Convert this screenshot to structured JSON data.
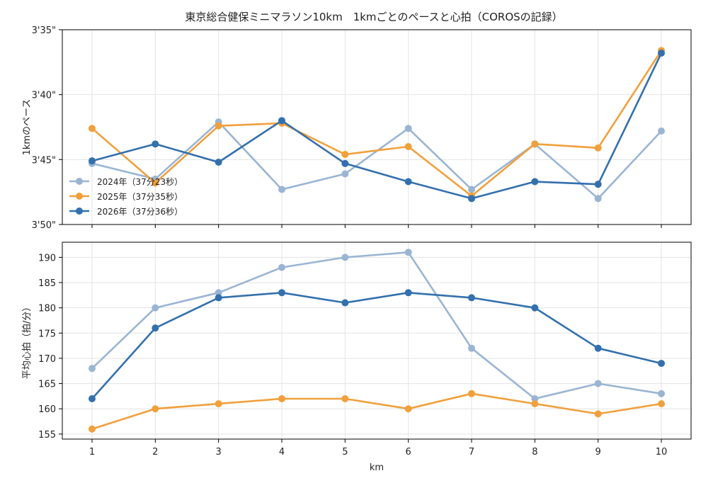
{
  "title": "東京総合健保ミニマラソン10km　1kmごとのペースと心拍（COROSの記録）",
  "colors": {
    "2024": "#9ab5d3",
    "2025": "#f0a03c",
    "2026": "#3370ad",
    "grid": "#e3e3e3",
    "axis": "#000000"
  },
  "chart_data": [
    {
      "type": "line",
      "ylabel": "1kmのペース",
      "y_unit": "seconds per km",
      "ylim": [
        215,
        230
      ],
      "y_inverted": true,
      "yticks": [
        {
          "value": 215,
          "label": "3'35\""
        },
        {
          "value": 220,
          "label": "3'40\""
        },
        {
          "value": 225,
          "label": "3'45\""
        },
        {
          "value": 230,
          "label": "3'50\""
        }
      ],
      "legend_position": "center-left",
      "x": [
        1,
        2,
        3,
        4,
        5,
        6,
        7,
        8,
        9,
        10
      ],
      "series": [
        {
          "name": "2024年（37分23秒）",
          "color": "#9ab5d3",
          "values": [
            225.3,
            226.5,
            222.1,
            227.3,
            226.1,
            222.6,
            227.3,
            223.8,
            228.0,
            222.8
          ]
        },
        {
          "name": "2025年（37分35秒）",
          "color": "#f0a03c",
          "values": [
            222.6,
            226.8,
            222.4,
            222.2,
            224.6,
            224.0,
            227.8,
            223.8,
            224.1,
            216.6
          ]
        },
        {
          "name": "2026年（37分36秒）",
          "color": "#3370ad",
          "values": [
            225.1,
            223.8,
            225.2,
            222.0,
            225.3,
            226.7,
            228.0,
            226.7,
            226.9,
            216.8
          ]
        }
      ]
    },
    {
      "type": "line",
      "xlabel": "km",
      "ylabel": "平均心拍（拍/分）",
      "ylim": [
        154,
        193
      ],
      "yticks": [
        155,
        160,
        165,
        170,
        175,
        180,
        185,
        190
      ],
      "x": [
        1,
        2,
        3,
        4,
        5,
        6,
        7,
        8,
        9,
        10
      ],
      "xticks": [
        "1",
        "2",
        "3",
        "4",
        "5",
        "6",
        "7",
        "8",
        "9",
        "10"
      ],
      "series": [
        {
          "name": "2024年（37分23秒）",
          "color": "#9ab5d3",
          "values": [
            168,
            180,
            183,
            188,
            190,
            191,
            172,
            162,
            165,
            163
          ]
        },
        {
          "name": "2025年（37分35秒）",
          "color": "#f0a03c",
          "values": [
            156,
            160,
            161,
            162,
            162,
            160,
            163,
            161,
            159,
            161
          ]
        },
        {
          "name": "2026年（37分36秒）",
          "color": "#3370ad",
          "values": [
            162,
            176,
            182,
            183,
            181,
            183,
            182,
            180,
            172,
            169
          ]
        }
      ]
    }
  ]
}
